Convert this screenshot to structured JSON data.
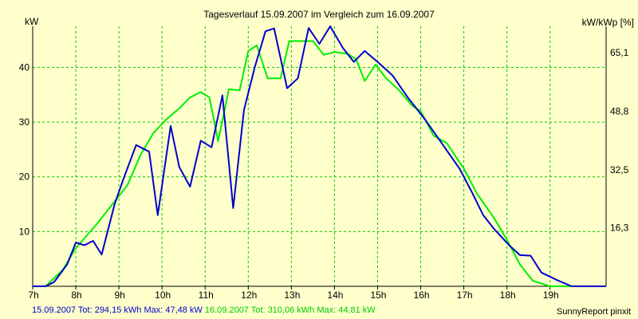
{
  "colors": {
    "background": "#ffffcc",
    "grid": "#00cc00",
    "series1": "#0000cc",
    "series2": "#00ee00",
    "axis": "#000000"
  },
  "labels": {
    "title": "Tagesverlauf 15.09.2007 im Vergleich zum 16.09.2007",
    "ylabel_left": "kW",
    "ylabel_right": "kW/kWp [%]",
    "footer_right": "SunnyReport pinxit",
    "series1_summary": "15.09.2007 Tot: 294,15 kWh Max: 47,48 kW",
    "series2_summary": "16.09.2007 Tot: 310,06 kWh Max: 44,81 kW"
  },
  "chart_data": {
    "type": "line",
    "title": "Tagesverlauf 15.09.2007 im Vergleich zum 16.09.2007",
    "ylabel": "kW",
    "ylabel_right": "kW/kWp [%]",
    "xlim": [
      7,
      20.3
    ],
    "ylim": [
      0,
      47.5
    ],
    "x_ticks": [
      {
        "v": 7,
        "label": "7h"
      },
      {
        "v": 8,
        "label": "8h"
      },
      {
        "v": 9,
        "label": "9h"
      },
      {
        "v": 10,
        "label": "10h"
      },
      {
        "v": 11,
        "label": "11h"
      },
      {
        "v": 12,
        "label": "12h"
      },
      {
        "v": 13,
        "label": "13h"
      },
      {
        "v": 14,
        "label": "14h"
      },
      {
        "v": 15,
        "label": "15h"
      },
      {
        "v": 16,
        "label": "16h"
      },
      {
        "v": 17,
        "label": "17h"
      },
      {
        "v": 18,
        "label": "18h"
      },
      {
        "v": 19,
        "label": "19h"
      }
    ],
    "y_ticks_left": [
      {
        "v": 10,
        "label": "10"
      },
      {
        "v": 20,
        "label": "20"
      },
      {
        "v": 30,
        "label": "30"
      },
      {
        "v": 40,
        "label": "40"
      }
    ],
    "y_ticks_right": [
      {
        "v": 10.7,
        "label": "16,3"
      },
      {
        "v": 21.3,
        "label": "32,5"
      },
      {
        "v": 32,
        "label": "48,8"
      },
      {
        "v": 42.7,
        "label": "65,1"
      }
    ],
    "grid": true,
    "series": [
      {
        "name": "15.09.2007",
        "color": "#0000cc",
        "points": [
          [
            7.0,
            0
          ],
          [
            7.3,
            0
          ],
          [
            7.5,
            0.8
          ],
          [
            7.8,
            4
          ],
          [
            8.0,
            8
          ],
          [
            8.2,
            7.5
          ],
          [
            8.4,
            8.3
          ],
          [
            8.6,
            5.8
          ],
          [
            8.9,
            15
          ],
          [
            9.1,
            19.5
          ],
          [
            9.4,
            25.8
          ],
          [
            9.7,
            24.6
          ],
          [
            9.9,
            13
          ],
          [
            10.2,
            29.3
          ],
          [
            10.4,
            21.8
          ],
          [
            10.65,
            18.2
          ],
          [
            10.9,
            26.6
          ],
          [
            11.15,
            25.4
          ],
          [
            11.4,
            34.9
          ],
          [
            11.65,
            14.3
          ],
          [
            11.9,
            32.2
          ],
          [
            12.15,
            40
          ],
          [
            12.4,
            46.6
          ],
          [
            12.6,
            47.1
          ],
          [
            12.9,
            36.2
          ],
          [
            13.15,
            38
          ],
          [
            13.4,
            47.2
          ],
          [
            13.65,
            44.3
          ],
          [
            13.9,
            47.5
          ],
          [
            14.2,
            43.5
          ],
          [
            14.45,
            41
          ],
          [
            14.7,
            43
          ],
          [
            15.0,
            41
          ],
          [
            15.35,
            38.5
          ],
          [
            15.7,
            34.5
          ],
          [
            16.1,
            30.5
          ],
          [
            16.5,
            26
          ],
          [
            16.9,
            21.5
          ],
          [
            17.2,
            17
          ],
          [
            17.45,
            13
          ],
          [
            17.7,
            10.5
          ],
          [
            18.05,
            7.5
          ],
          [
            18.3,
            5.7
          ],
          [
            18.55,
            5.6
          ],
          [
            18.8,
            2.5
          ],
          [
            19.2,
            1
          ],
          [
            19.5,
            0
          ],
          [
            20.3,
            0
          ]
        ]
      },
      {
        "name": "16.09.2007",
        "color": "#00ee00",
        "points": [
          [
            7.0,
            0
          ],
          [
            7.3,
            0
          ],
          [
            7.7,
            3
          ],
          [
            8.0,
            7
          ],
          [
            8.5,
            11.5
          ],
          [
            8.9,
            15.5
          ],
          [
            9.2,
            18.5
          ],
          [
            9.5,
            24
          ],
          [
            9.8,
            28
          ],
          [
            10.1,
            30.5
          ],
          [
            10.4,
            32.5
          ],
          [
            10.65,
            34.5
          ],
          [
            10.9,
            35.5
          ],
          [
            11.1,
            34.5
          ],
          [
            11.3,
            26.5
          ],
          [
            11.55,
            36
          ],
          [
            11.8,
            35.8
          ],
          [
            12.0,
            43
          ],
          [
            12.2,
            44
          ],
          [
            12.45,
            38
          ],
          [
            12.75,
            38
          ],
          [
            12.95,
            44.8
          ],
          [
            13.25,
            44.8
          ],
          [
            13.5,
            44.8
          ],
          [
            13.75,
            42.3
          ],
          [
            14.0,
            42.8
          ],
          [
            14.3,
            42.5
          ],
          [
            14.5,
            41.5
          ],
          [
            14.7,
            37.5
          ],
          [
            14.95,
            40.5
          ],
          [
            15.2,
            38
          ],
          [
            15.5,
            35.8
          ],
          [
            15.8,
            33
          ],
          [
            16.0,
            32
          ],
          [
            16.3,
            27.5
          ],
          [
            16.6,
            26.2
          ],
          [
            17.0,
            21.5
          ],
          [
            17.3,
            17
          ],
          [
            17.7,
            12.5
          ],
          [
            18.0,
            8.5
          ],
          [
            18.3,
            4
          ],
          [
            18.6,
            1
          ],
          [
            19.0,
            0
          ],
          [
            20.3,
            0
          ]
        ]
      }
    ]
  }
}
